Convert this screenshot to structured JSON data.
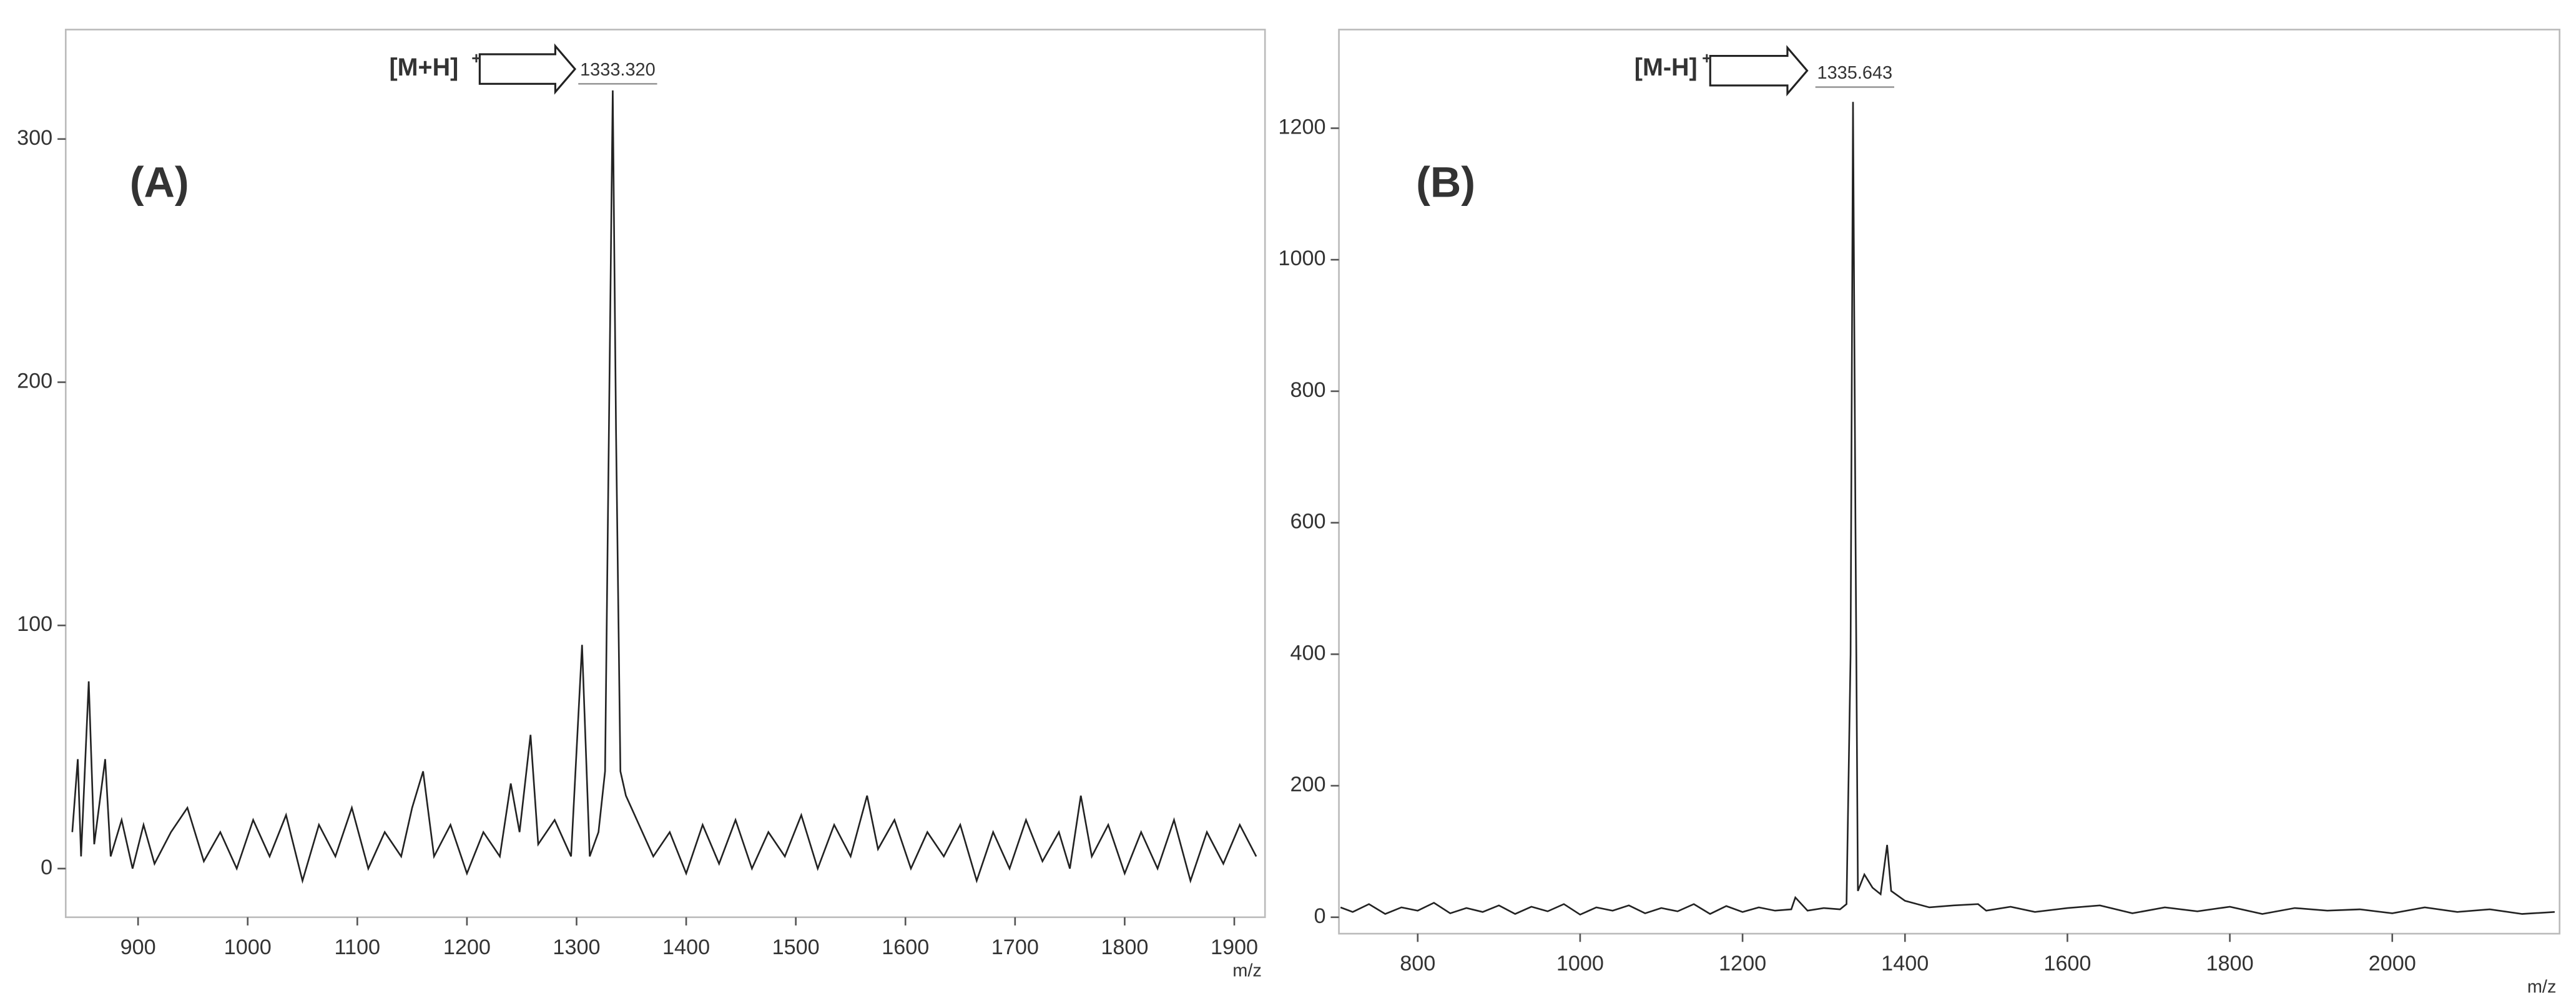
{
  "chart_data": [
    {
      "type": "line",
      "label": "(A)",
      "xlabel": "m/z",
      "color": "#222222",
      "annotation": {
        "text": "[M+H]",
        "superscript": "+",
        "peak_label": "1333.320"
      },
      "xlim": [
        834,
        1928
      ],
      "xticks": [
        900,
        1000,
        1100,
        1200,
        1300,
        1400,
        1500,
        1600,
        1700,
        1800,
        1900
      ],
      "ylim": [
        -20,
        345
      ],
      "yticks": [
        0,
        100,
        200,
        300
      ],
      "x": [
        840,
        845,
        848,
        855,
        860,
        870,
        875,
        885,
        895,
        905,
        915,
        930,
        945,
        960,
        975,
        990,
        1005,
        1020,
        1035,
        1050,
        1065,
        1080,
        1095,
        1110,
        1125,
        1140,
        1150,
        1160,
        1170,
        1185,
        1200,
        1215,
        1230,
        1240,
        1248,
        1258,
        1265,
        1280,
        1295,
        1305,
        1312,
        1320,
        1326,
        1330,
        1333,
        1336,
        1340,
        1345,
        1355,
        1370,
        1385,
        1400,
        1415,
        1430,
        1445,
        1460,
        1475,
        1490,
        1505,
        1520,
        1535,
        1550,
        1565,
        1575,
        1590,
        1605,
        1620,
        1635,
        1650,
        1665,
        1680,
        1695,
        1710,
        1725,
        1740,
        1750,
        1760,
        1770,
        1785,
        1800,
        1815,
        1830,
        1845,
        1860,
        1875,
        1890,
        1905,
        1920
      ],
      "values": [
        15,
        45,
        5,
        77,
        10,
        45,
        5,
        20,
        0,
        18,
        2,
        15,
        25,
        3,
        15,
        0,
        20,
        5,
        22,
        -5,
        18,
        5,
        25,
        0,
        15,
        5,
        25,
        40,
        5,
        18,
        -2,
        15,
        5,
        35,
        15,
        55,
        10,
        20,
        5,
        92,
        5,
        15,
        40,
        200,
        320,
        180,
        40,
        30,
        20,
        5,
        15,
        -2,
        18,
        2,
        20,
        0,
        15,
        5,
        22,
        0,
        18,
        5,
        30,
        8,
        20,
        0,
        15,
        5,
        18,
        -5,
        15,
        0,
        20,
        3,
        15,
        0,
        30,
        5,
        18,
        -2,
        15,
        0,
        20,
        -5,
        15,
        2,
        18,
        5
      ]
    },
    {
      "type": "line",
      "label": "(B)",
      "xlabel": "m/z",
      "color": "#222222",
      "annotation": {
        "text": "[M-H]",
        "superscript": "+",
        "peak_label": "1335.643"
      },
      "xlim": [
        703,
        2206
      ],
      "xticks": [
        800,
        1000,
        1200,
        1400,
        1600,
        1800,
        2000
      ],
      "ylim": [
        -25,
        1350
      ],
      "yticks": [
        0,
        200,
        400,
        600,
        800,
        1000,
        1200
      ],
      "x": [
        705,
        720,
        740,
        760,
        780,
        800,
        820,
        840,
        860,
        880,
        900,
        920,
        940,
        960,
        980,
        1000,
        1020,
        1040,
        1060,
        1080,
        1100,
        1120,
        1140,
        1160,
        1180,
        1200,
        1220,
        1240,
        1260,
        1265,
        1280,
        1300,
        1320,
        1328,
        1333,
        1336,
        1339,
        1342,
        1350,
        1360,
        1370,
        1378,
        1383,
        1400,
        1430,
        1460,
        1490,
        1500,
        1530,
        1560,
        1600,
        1640,
        1680,
        1720,
        1760,
        1800,
        1840,
        1880,
        1920,
        1960,
        2000,
        2040,
        2080,
        2120,
        2160,
        2200
      ],
      "values": [
        15,
        8,
        20,
        5,
        15,
        10,
        22,
        6,
        14,
        8,
        18,
        5,
        16,
        9,
        20,
        4,
        15,
        10,
        18,
        6,
        14,
        9,
        20,
        5,
        17,
        8,
        15,
        10,
        12,
        30,
        10,
        14,
        12,
        20,
        400,
        1240,
        600,
        40,
        65,
        45,
        35,
        110,
        40,
        25,
        15,
        18,
        20,
        10,
        16,
        8,
        14,
        18,
        6,
        15,
        9,
        16,
        5,
        14,
        10,
        12,
        6,
        15,
        8,
        12,
        5,
        8
      ]
    }
  ]
}
